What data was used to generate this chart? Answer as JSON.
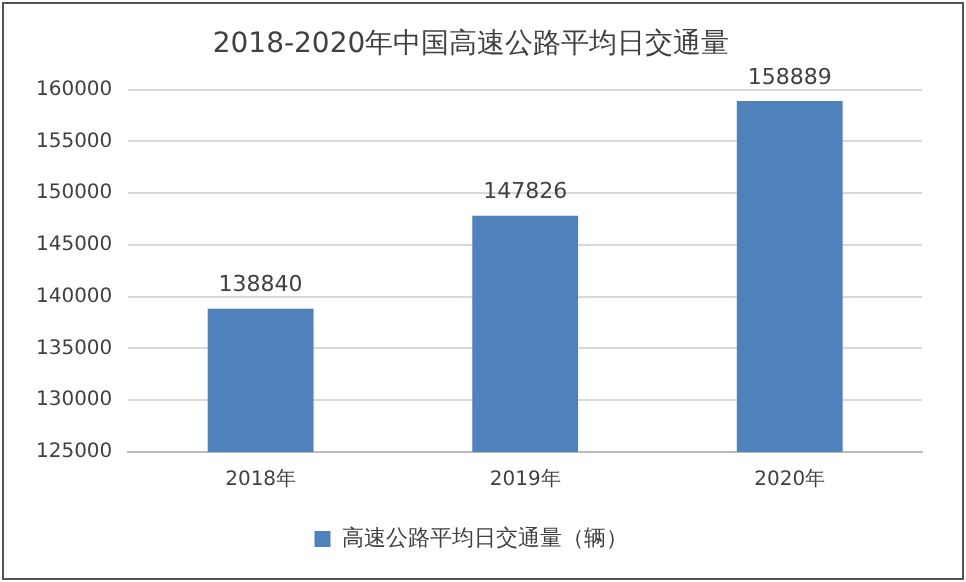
{
  "chart_data": {
    "type": "bar",
    "title": "2018-2020年中国高速公路平均日交通量",
    "categories": [
      "2018年",
      "2019年",
      "2020年"
    ],
    "series": [
      {
        "name": "高速公路平均日交通量（辆）",
        "color": "#4f81bd",
        "values": [
          138840,
          147826,
          158889
        ]
      }
    ],
    "ylim": [
      125000,
      160000
    ],
    "yticks": [
      125000,
      130000,
      135000,
      140000,
      145000,
      150000,
      155000,
      160000
    ],
    "grid": "y",
    "legend": "bottom",
    "data_labels": true
  }
}
